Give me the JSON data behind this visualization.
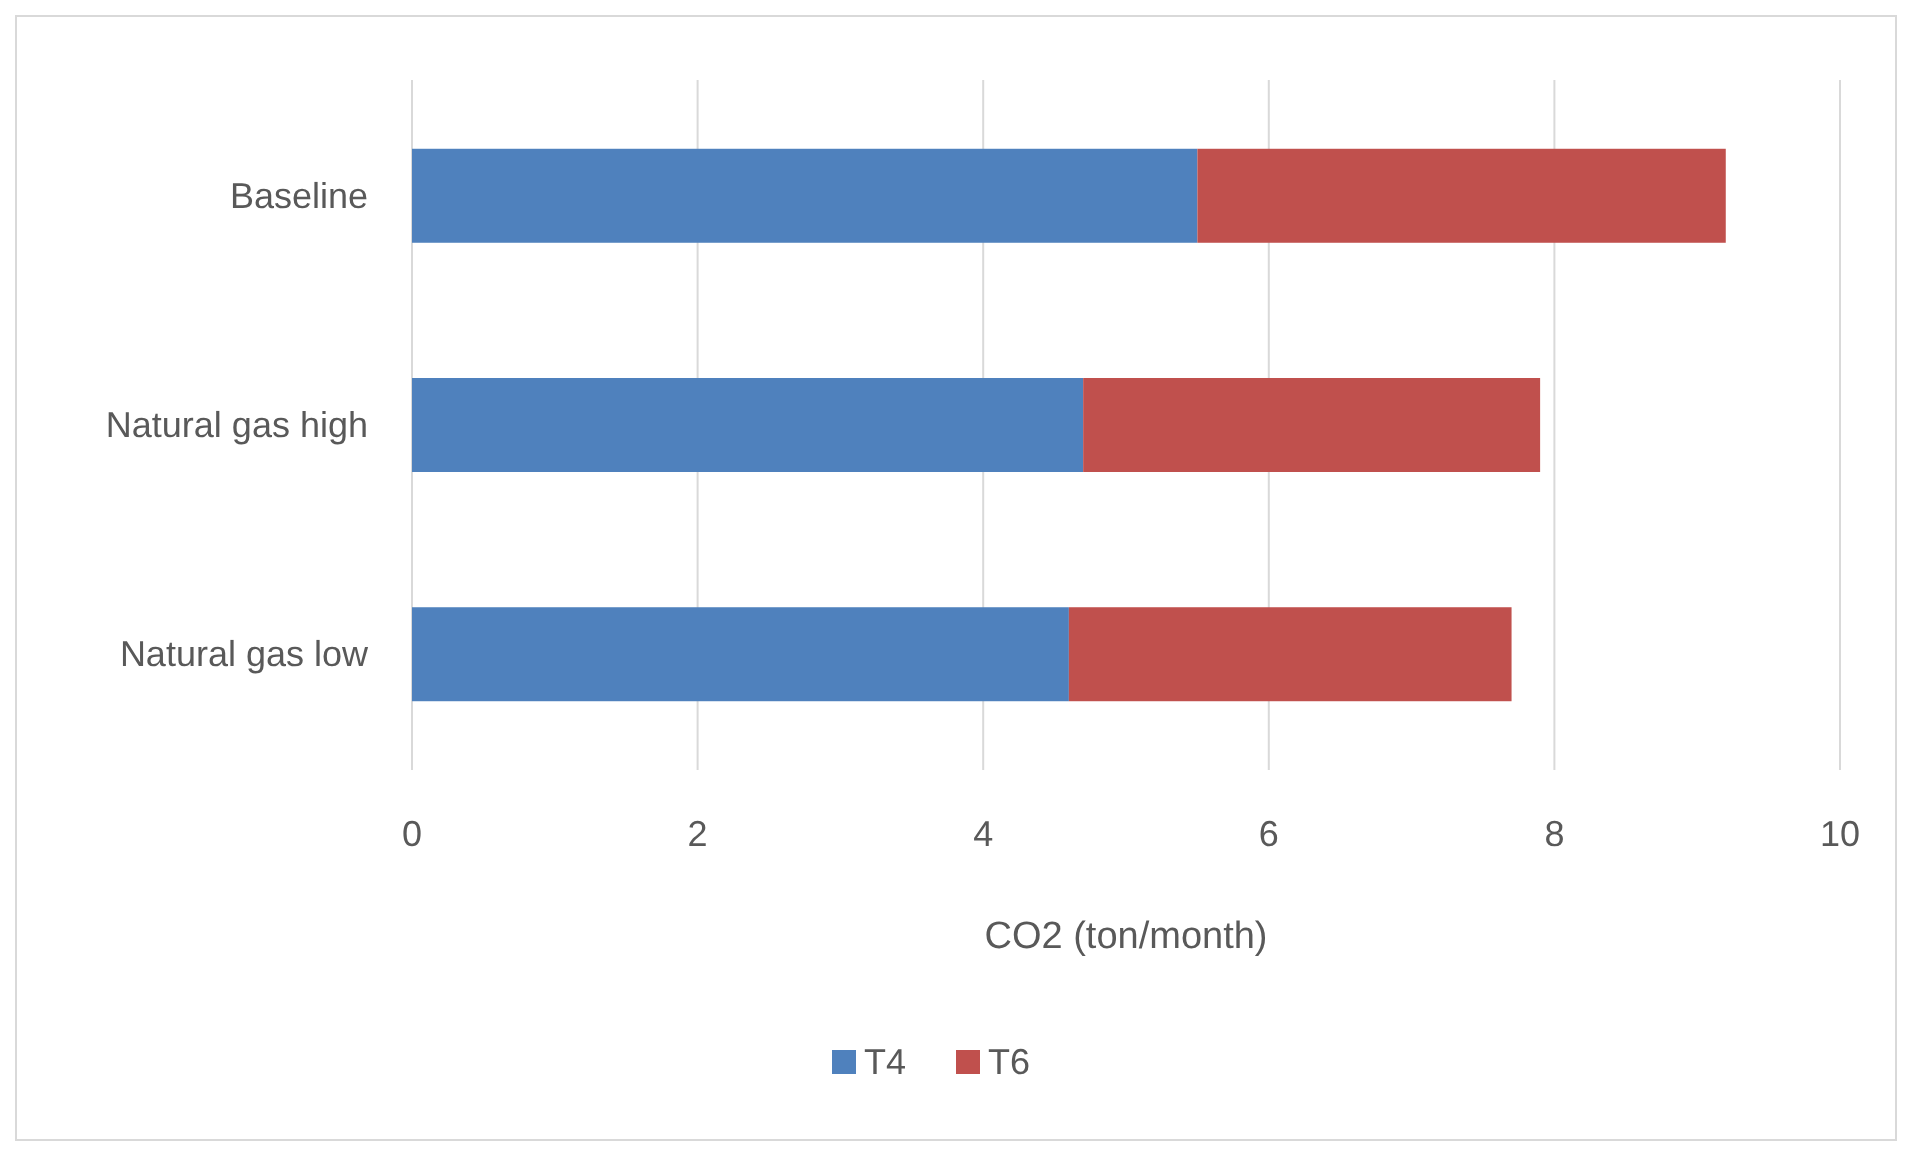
{
  "chart_data": {
    "type": "bar",
    "orientation": "horizontal",
    "stacked": true,
    "categories": [
      "Baseline",
      "Natural gas high",
      "Natural gas low"
    ],
    "series": [
      {
        "name": "T4",
        "color": "#4f81bd",
        "values": [
          5.5,
          4.7,
          4.6
        ]
      },
      {
        "name": "T6",
        "color": "#c0504d",
        "values": [
          3.7,
          3.2,
          3.1
        ]
      }
    ],
    "xlim": [
      0,
      10
    ],
    "xticks": [
      0,
      2,
      4,
      6,
      8,
      10
    ],
    "xlabel": "CO2 (ton/month)",
    "grid": "x",
    "legend": "bottom"
  }
}
